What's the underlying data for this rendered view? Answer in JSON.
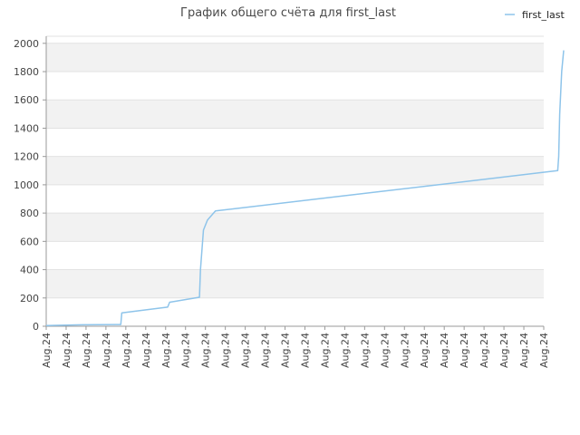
{
  "chart_data": {
    "type": "line",
    "title": "График общего счёта для first_last",
    "xlabel": "",
    "ylabel": "",
    "ylim": [
      0,
      2050
    ],
    "y_ticks": [
      0,
      200,
      400,
      600,
      800,
      1000,
      1200,
      1400,
      1600,
      1800,
      2000
    ],
    "x_ticks": [
      "Aug.24",
      "Aug.24",
      "Aug.24",
      "Aug.24",
      "Aug.24",
      "Aug.24",
      "Aug.24",
      "Aug.24",
      "Aug.24",
      "Aug.24",
      "Aug.24",
      "Aug.24",
      "Aug.24",
      "Aug.24",
      "Aug.24",
      "Aug.24",
      "Aug.24",
      "Aug.24",
      "Aug.24",
      "Aug.24",
      "Aug.24",
      "Aug.24",
      "Aug.24",
      "Aug.24",
      "Aug.24",
      "Aug.24"
    ],
    "grid": "horizontal bands",
    "legend_position": "top-right",
    "series": [
      {
        "name": "first_last",
        "color": "#8ec4ea",
        "x": [
          0,
          1.8,
          3.75,
          3.8,
          6.1,
          6.2,
          7.7,
          7.75,
          7.9,
          8.1,
          8.5,
          25.7,
          25.75,
          25.8,
          25.9,
          26
        ],
        "values": [
          5,
          10,
          12,
          95,
          135,
          170,
          205,
          400,
          680,
          750,
          815,
          1100,
          1200,
          1500,
          1800,
          1950
        ]
      }
    ]
  }
}
